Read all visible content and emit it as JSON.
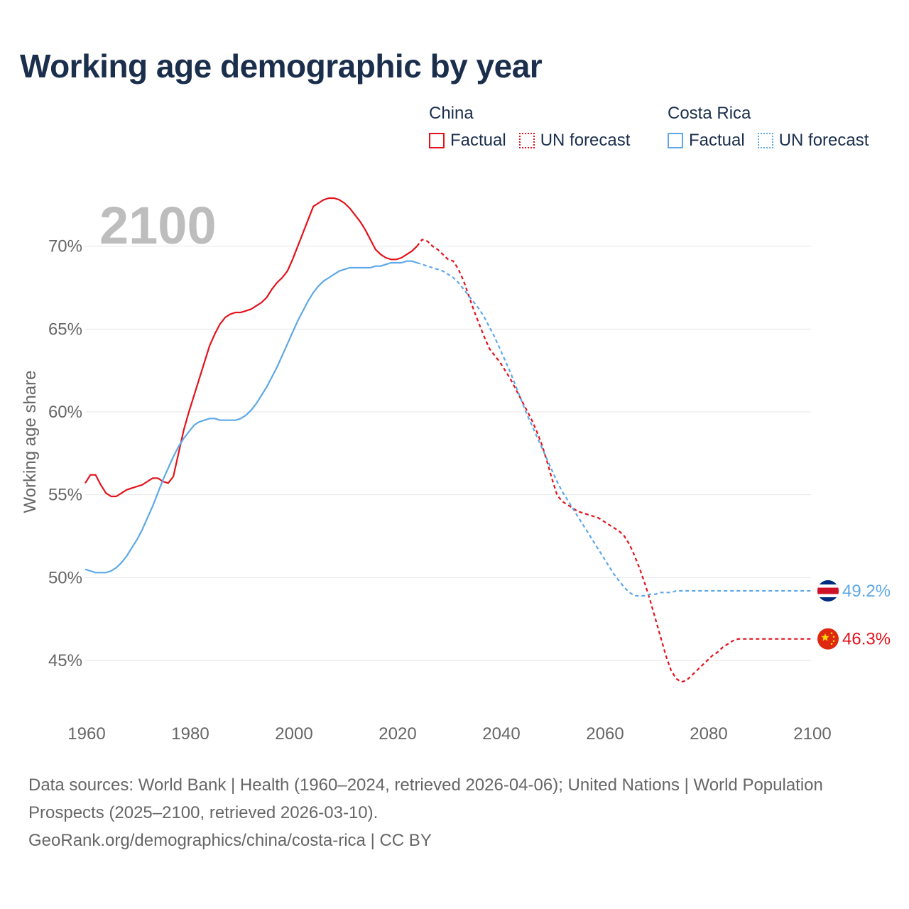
{
  "title": "Working age demographic by year",
  "legend": {
    "groups": [
      {
        "name": "China",
        "color": "#e3121b",
        "items": [
          {
            "label": "Factual",
            "style": "solid"
          },
          {
            "label": "UN forecast",
            "style": "dotted"
          }
        ]
      },
      {
        "name": "Costa Rica",
        "color": "#5ea8e8",
        "items": [
          {
            "label": "Factual",
            "style": "solid"
          },
          {
            "label": "UN forecast",
            "style": "dotted"
          }
        ]
      }
    ]
  },
  "year_label": "2100",
  "footer": {
    "sources": "Data sources: World Bank | Health (1960–2024, retrieved 2026-04-06); United Nations | World Population Prospects (2025–2100, retrieved 2026-03-10).",
    "credit": "GeoRank.org/demographics/china/costa-rica | CC BY"
  },
  "chart_data": {
    "type": "line",
    "title": "Working age demographic by year",
    "xlabel": "",
    "ylabel": "Working age share",
    "xlim": [
      1960,
      2100
    ],
    "ylim": [
      42.0,
      73.5
    ],
    "x_ticks": [
      1960,
      1980,
      2000,
      2020,
      2040,
      2060,
      2080,
      2100
    ],
    "y_ticks": [
      {
        "value": 45,
        "label": "45%"
      },
      {
        "value": 50,
        "label": "50%"
      },
      {
        "value": 55,
        "label": "55%"
      },
      {
        "value": 60,
        "label": "60%"
      },
      {
        "value": 65,
        "label": "65%"
      },
      {
        "value": 70,
        "label": "70%"
      }
    ],
    "grid": true,
    "series": [
      {
        "name": "China",
        "color": "#e3121b",
        "factual": [
          [
            1960,
            55.7
          ],
          [
            1961,
            56.2
          ],
          [
            1962,
            56.2
          ],
          [
            1963,
            55.6
          ],
          [
            1964,
            55.1
          ],
          [
            1965,
            54.9
          ],
          [
            1966,
            54.9
          ],
          [
            1967,
            55.1
          ],
          [
            1968,
            55.3
          ],
          [
            1969,
            55.4
          ],
          [
            1970,
            55.5
          ],
          [
            1971,
            55.6
          ],
          [
            1972,
            55.8
          ],
          [
            1973,
            56.0
          ],
          [
            1974,
            56.0
          ],
          [
            1975,
            55.8
          ],
          [
            1976,
            55.7
          ],
          [
            1977,
            56.1
          ],
          [
            1978,
            57.5
          ],
          [
            1979,
            58.9
          ],
          [
            1980,
            60.0
          ],
          [
            1981,
            61.0
          ],
          [
            1982,
            62.0
          ],
          [
            1983,
            63.0
          ],
          [
            1984,
            64.0
          ],
          [
            1985,
            64.7
          ],
          [
            1986,
            65.3
          ],
          [
            1987,
            65.7
          ],
          [
            1988,
            65.9
          ],
          [
            1989,
            66.0
          ],
          [
            1990,
            66.0
          ],
          [
            1991,
            66.1
          ],
          [
            1992,
            66.2
          ],
          [
            1993,
            66.4
          ],
          [
            1994,
            66.6
          ],
          [
            1995,
            66.9
          ],
          [
            1996,
            67.4
          ],
          [
            1997,
            67.8
          ],
          [
            1998,
            68.1
          ],
          [
            1999,
            68.5
          ],
          [
            2000,
            69.2
          ],
          [
            2001,
            70.0
          ],
          [
            2002,
            70.8
          ],
          [
            2003,
            71.6
          ],
          [
            2004,
            72.4
          ],
          [
            2005,
            72.6
          ],
          [
            2006,
            72.8
          ],
          [
            2007,
            72.9
          ],
          [
            2008,
            72.9
          ],
          [
            2009,
            72.8
          ],
          [
            2010,
            72.6
          ],
          [
            2011,
            72.3
          ],
          [
            2012,
            71.9
          ],
          [
            2013,
            71.5
          ],
          [
            2014,
            71.0
          ],
          [
            2015,
            70.4
          ],
          [
            2016,
            69.8
          ],
          [
            2017,
            69.5
          ],
          [
            2018,
            69.3
          ],
          [
            2019,
            69.2
          ],
          [
            2020,
            69.2
          ],
          [
            2021,
            69.3
          ],
          [
            2022,
            69.5
          ],
          [
            2023,
            69.7
          ],
          [
            2024,
            70.0
          ]
        ],
        "forecast": [
          [
            2024,
            70.0
          ],
          [
            2025,
            70.4
          ],
          [
            2026,
            70.3
          ],
          [
            2027,
            70.0
          ],
          [
            2028,
            69.8
          ],
          [
            2029,
            69.5
          ],
          [
            2030,
            69.2
          ],
          [
            2031,
            69.1
          ],
          [
            2032,
            68.6
          ],
          [
            2033,
            67.9
          ],
          [
            2034,
            67.0
          ],
          [
            2035,
            66.1
          ],
          [
            2036,
            65.3
          ],
          [
            2037,
            64.5
          ],
          [
            2038,
            63.8
          ],
          [
            2039,
            63.4
          ],
          [
            2040,
            63.0
          ],
          [
            2041,
            62.5
          ],
          [
            2042,
            62.0
          ],
          [
            2043,
            61.4
          ],
          [
            2044,
            60.8
          ],
          [
            2045,
            60.2
          ],
          [
            2046,
            59.6
          ],
          [
            2047,
            58.9
          ],
          [
            2048,
            58.1
          ],
          [
            2049,
            57.1
          ],
          [
            2050,
            56.0
          ],
          [
            2051,
            55.0
          ],
          [
            2052,
            54.6
          ],
          [
            2053,
            54.4
          ],
          [
            2054,
            54.2
          ],
          [
            2055,
            54.0
          ],
          [
            2056,
            53.9
          ],
          [
            2057,
            53.8
          ],
          [
            2058,
            53.7
          ],
          [
            2059,
            53.6
          ],
          [
            2060,
            53.4
          ],
          [
            2061,
            53.2
          ],
          [
            2062,
            53.0
          ],
          [
            2063,
            52.8
          ],
          [
            2064,
            52.5
          ],
          [
            2065,
            52.0
          ],
          [
            2066,
            51.3
          ],
          [
            2067,
            50.5
          ],
          [
            2068,
            49.6
          ],
          [
            2069,
            48.6
          ],
          [
            2070,
            47.5
          ],
          [
            2071,
            46.4
          ],
          [
            2072,
            45.3
          ],
          [
            2073,
            44.4
          ],
          [
            2074,
            43.9
          ],
          [
            2075,
            43.7
          ],
          [
            2076,
            43.8
          ],
          [
            2077,
            44.1
          ],
          [
            2078,
            44.4
          ],
          [
            2079,
            44.7
          ],
          [
            2080,
            45.0
          ],
          [
            2081,
            45.3
          ],
          [
            2082,
            45.5
          ],
          [
            2083,
            45.8
          ],
          [
            2084,
            46.0
          ],
          [
            2085,
            46.2
          ],
          [
            2086,
            46.3
          ],
          [
            2087,
            46.3
          ],
          [
            2100,
            46.3
          ]
        ],
        "end_label": "46.3%"
      },
      {
        "name": "Costa Rica",
        "color": "#5ea8e8",
        "factual": [
          [
            1960,
            50.5
          ],
          [
            1961,
            50.4
          ],
          [
            1962,
            50.3
          ],
          [
            1963,
            50.3
          ],
          [
            1964,
            50.3
          ],
          [
            1965,
            50.4
          ],
          [
            1966,
            50.6
          ],
          [
            1967,
            50.9
          ],
          [
            1968,
            51.3
          ],
          [
            1969,
            51.8
          ],
          [
            1970,
            52.3
          ],
          [
            1971,
            52.9
          ],
          [
            1972,
            53.6
          ],
          [
            1973,
            54.3
          ],
          [
            1974,
            55.1
          ],
          [
            1975,
            55.9
          ],
          [
            1976,
            56.6
          ],
          [
            1977,
            57.3
          ],
          [
            1978,
            57.9
          ],
          [
            1979,
            58.4
          ],
          [
            1980,
            58.8
          ],
          [
            1981,
            59.2
          ],
          [
            1982,
            59.4
          ],
          [
            1983,
            59.5
          ],
          [
            1984,
            59.6
          ],
          [
            1985,
            59.6
          ],
          [
            1986,
            59.5
          ],
          [
            1987,
            59.5
          ],
          [
            1988,
            59.5
          ],
          [
            1989,
            59.5
          ],
          [
            1990,
            59.6
          ],
          [
            1991,
            59.8
          ],
          [
            1992,
            60.1
          ],
          [
            1993,
            60.5
          ],
          [
            1994,
            61.0
          ],
          [
            1995,
            61.5
          ],
          [
            1996,
            62.1
          ],
          [
            1997,
            62.7
          ],
          [
            1998,
            63.4
          ],
          [
            1999,
            64.1
          ],
          [
            2000,
            64.8
          ],
          [
            2001,
            65.5
          ],
          [
            2002,
            66.1
          ],
          [
            2003,
            66.7
          ],
          [
            2004,
            67.2
          ],
          [
            2005,
            67.6
          ],
          [
            2006,
            67.9
          ],
          [
            2007,
            68.1
          ],
          [
            2008,
            68.3
          ],
          [
            2009,
            68.5
          ],
          [
            2010,
            68.6
          ],
          [
            2011,
            68.7
          ],
          [
            2012,
            68.7
          ],
          [
            2013,
            68.7
          ],
          [
            2014,
            68.7
          ],
          [
            2015,
            68.7
          ],
          [
            2016,
            68.8
          ],
          [
            2017,
            68.8
          ],
          [
            2018,
            68.9
          ],
          [
            2019,
            69.0
          ],
          [
            2020,
            69.0
          ],
          [
            2021,
            69.0
          ],
          [
            2022,
            69.1
          ],
          [
            2023,
            69.1
          ],
          [
            2024,
            69.0
          ]
        ],
        "forecast": [
          [
            2024,
            69.0
          ],
          [
            2025,
            68.9
          ],
          [
            2026,
            68.8
          ],
          [
            2027,
            68.7
          ],
          [
            2028,
            68.6
          ],
          [
            2029,
            68.5
          ],
          [
            2030,
            68.3
          ],
          [
            2031,
            68.1
          ],
          [
            2032,
            67.8
          ],
          [
            2033,
            67.4
          ],
          [
            2034,
            67.0
          ],
          [
            2035,
            66.6
          ],
          [
            2036,
            66.2
          ],
          [
            2037,
            65.7
          ],
          [
            2038,
            65.1
          ],
          [
            2039,
            64.5
          ],
          [
            2040,
            63.8
          ],
          [
            2041,
            63.1
          ],
          [
            2042,
            62.4
          ],
          [
            2043,
            61.6
          ],
          [
            2044,
            60.8
          ],
          [
            2045,
            60.0
          ],
          [
            2046,
            59.3
          ],
          [
            2047,
            58.6
          ],
          [
            2048,
            57.9
          ],
          [
            2049,
            57.2
          ],
          [
            2050,
            56.5
          ],
          [
            2051,
            55.8
          ],
          [
            2052,
            55.2
          ],
          [
            2053,
            54.7
          ],
          [
            2054,
            54.2
          ],
          [
            2055,
            53.7
          ],
          [
            2056,
            53.2
          ],
          [
            2057,
            52.7
          ],
          [
            2058,
            52.2
          ],
          [
            2059,
            51.7
          ],
          [
            2060,
            51.2
          ],
          [
            2061,
            50.7
          ],
          [
            2062,
            50.2
          ],
          [
            2063,
            49.8
          ],
          [
            2064,
            49.4
          ],
          [
            2065,
            49.1
          ],
          [
            2066,
            48.9
          ],
          [
            2067,
            48.9
          ],
          [
            2068,
            48.9
          ],
          [
            2069,
            49.0
          ],
          [
            2070,
            49.0
          ],
          [
            2071,
            49.1
          ],
          [
            2072,
            49.1
          ],
          [
            2073,
            49.1
          ],
          [
            2074,
            49.2
          ],
          [
            2075,
            49.2
          ],
          [
            2100,
            49.2
          ]
        ],
        "end_label": "49.2%"
      }
    ]
  }
}
